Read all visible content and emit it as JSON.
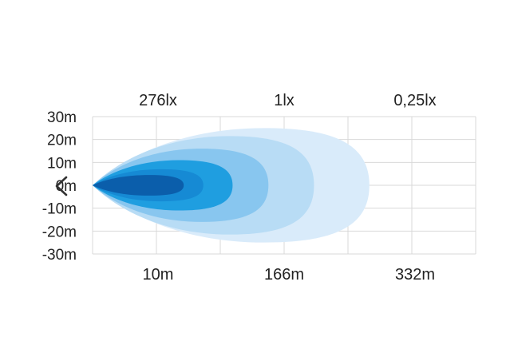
{
  "chart_data": {
    "type": "area",
    "title": "",
    "xlabel": "",
    "ylabel": "",
    "ylim": [
      -30,
      30
    ],
    "grid": true,
    "y_ticks": [
      {
        "value": 30,
        "label": "30m"
      },
      {
        "value": 20,
        "label": "20m"
      },
      {
        "value": 10,
        "label": "10m"
      },
      {
        "value": 0,
        "label": "0m"
      },
      {
        "value": -10,
        "label": "-10m"
      },
      {
        "value": -20,
        "label": "-20m"
      },
      {
        "value": -30,
        "label": "-30m"
      }
    ],
    "x_ticks": [
      {
        "label": "10m"
      },
      {
        "label": "166m"
      },
      {
        "label": "332m"
      }
    ],
    "lux_labels": [
      {
        "label": "276lx"
      },
      {
        "label": "1lx"
      },
      {
        "label": "0,25lx"
      }
    ],
    "series_colors": [
      "#d9ebfa",
      "#b8dcf5",
      "#88c6ef",
      "#1f9ee0",
      "#168ad4",
      "#0b5eab"
    ],
    "series": [
      {
        "half_width": 25,
        "tip": 0.85
      },
      {
        "half_width": 21.5,
        "tip": 0.68
      },
      {
        "half_width": 16,
        "tip": 0.54
      },
      {
        "half_width": 11,
        "tip": 0.43
      },
      {
        "half_width": 7,
        "tip": 0.34
      },
      {
        "half_width": 4.5,
        "tip": 0.28
      }
    ]
  },
  "navigation": {
    "prev_icon": "chevron-left-icon"
  }
}
